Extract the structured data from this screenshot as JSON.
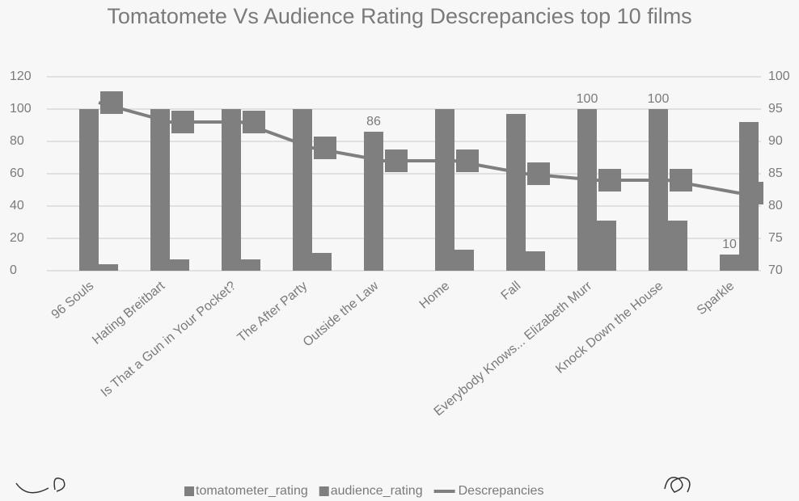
{
  "chart_data": {
    "type": "bar-line",
    "title": "Tomatomete Vs Audience Rating Descrepancies top 10 films",
    "categories": [
      "96 Souls",
      "Hating Breitbart",
      "Is That a Gun in Your Pocket?",
      "The After Party",
      "Outside the Law",
      "Home",
      "Fall",
      "Everybody Knows... Elizabeth Murr",
      "Knock Down the House",
      "Sparkle"
    ],
    "series": [
      {
        "name": "tomatometer_rating",
        "color": "#7f7f7f",
        "type": "bar",
        "values": [
          100,
          100,
          100,
          100,
          86,
          100,
          97,
          100,
          100,
          10
        ],
        "value_labels": [
          null,
          null,
          null,
          null,
          "86",
          null,
          null,
          "100",
          "100",
          "10"
        ]
      },
      {
        "name": "audience_rating",
        "color": "#7f7f7f",
        "type": "bar",
        "values": [
          4,
          7,
          7,
          11,
          0,
          13,
          12,
          31,
          31,
          92
        ]
      },
      {
        "name": "Descrepancies",
        "color": "#7f7f7f",
        "type": "line",
        "axis": "y2",
        "values": [
          96,
          93,
          93,
          89,
          87,
          87,
          85,
          84,
          84,
          82
        ]
      }
    ],
    "ylim": [
      0,
      120
    ],
    "yticks": [
      0,
      20,
      40,
      60,
      80,
      100,
      120
    ],
    "y2lim": [
      70,
      100
    ],
    "y2ticks": [
      70,
      75,
      80,
      85,
      90,
      95,
      100
    ],
    "grid": true,
    "legend": "bottom"
  }
}
